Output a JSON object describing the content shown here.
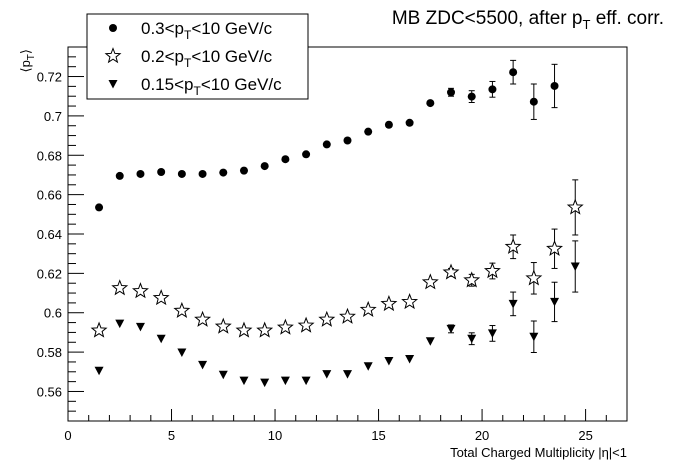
{
  "chart_data": {
    "type": "scatter",
    "title_main": "MB ZDC<5500, after p",
    "title_sub": "T",
    "title_tail": " eff. corr.",
    "xlabel": "Total Charged Multiplicity |η|<1",
    "ylabel_main": "⟨p",
    "ylabel_sub": "T",
    "ylabel_tail": "⟩",
    "xlim": [
      0,
      27
    ],
    "ylim": [
      0.545,
      0.735
    ],
    "x_ticks": [
      0,
      5,
      10,
      15,
      20,
      25
    ],
    "x_tick_labels": [
      "0",
      "5",
      "10",
      "15",
      "20",
      "25"
    ],
    "y_ticks": [
      0.56,
      0.58,
      0.6,
      0.62,
      0.64,
      0.66,
      0.68,
      0.7,
      0.72
    ],
    "y_tick_labels": [
      "0.56",
      "0.58",
      "0.6",
      "0.62",
      "0.64",
      "0.66",
      "0.68",
      "0.7",
      "0.72"
    ],
    "grid": false,
    "legend_position": "top-left",
    "series": [
      {
        "name_pre": "0.3<p",
        "name_sub": "T",
        "name_post": "<10 GeV/c",
        "marker": "circle",
        "points": [
          {
            "x": 1.5,
            "y": 0.6535,
            "err": 0.0
          },
          {
            "x": 2.5,
            "y": 0.6695,
            "err": 0.0
          },
          {
            "x": 3.5,
            "y": 0.6705,
            "err": 0.0
          },
          {
            "x": 4.5,
            "y": 0.6715,
            "err": 0.0
          },
          {
            "x": 5.5,
            "y": 0.6705,
            "err": 0.0
          },
          {
            "x": 6.5,
            "y": 0.6705,
            "err": 0.0
          },
          {
            "x": 7.5,
            "y": 0.6712,
            "err": 0.0
          },
          {
            "x": 8.5,
            "y": 0.6722,
            "err": 0.0
          },
          {
            "x": 9.5,
            "y": 0.6745,
            "err": 0.0
          },
          {
            "x": 10.5,
            "y": 0.678,
            "err": 0.0
          },
          {
            "x": 11.5,
            "y": 0.6805,
            "err": 0.0
          },
          {
            "x": 12.5,
            "y": 0.6855,
            "err": 0.0
          },
          {
            "x": 13.5,
            "y": 0.6875,
            "err": 0.0
          },
          {
            "x": 14.5,
            "y": 0.692,
            "err": 0.0
          },
          {
            "x": 15.5,
            "y": 0.6955,
            "err": 0.0
          },
          {
            "x": 16.5,
            "y": 0.6965,
            "err": 0.0
          },
          {
            "x": 17.5,
            "y": 0.7065,
            "err": 0.0
          },
          {
            "x": 18.5,
            "y": 0.712,
            "err": 0.002
          },
          {
            "x": 19.5,
            "y": 0.7098,
            "err": 0.003
          },
          {
            "x": 20.5,
            "y": 0.7135,
            "err": 0.004
          },
          {
            "x": 21.5,
            "y": 0.7222,
            "err": 0.006
          },
          {
            "x": 22.5,
            "y": 0.7072,
            "err": 0.009
          },
          {
            "x": 23.5,
            "y": 0.7152,
            "err": 0.011
          }
        ]
      },
      {
        "name_pre": "0.2<p",
        "name_sub": "T",
        "name_post": "<10 GeV/c",
        "marker": "star",
        "points": [
          {
            "x": 1.5,
            "y": 0.591,
            "err": 0.0
          },
          {
            "x": 2.5,
            "y": 0.6125,
            "err": 0.0
          },
          {
            "x": 3.5,
            "y": 0.611,
            "err": 0.0
          },
          {
            "x": 4.5,
            "y": 0.6075,
            "err": 0.0
          },
          {
            "x": 5.5,
            "y": 0.601,
            "err": 0.0
          },
          {
            "x": 6.5,
            "y": 0.5965,
            "err": 0.0
          },
          {
            "x": 7.5,
            "y": 0.593,
            "err": 0.0
          },
          {
            "x": 8.5,
            "y": 0.591,
            "err": 0.0
          },
          {
            "x": 9.5,
            "y": 0.591,
            "err": 0.0
          },
          {
            "x": 10.5,
            "y": 0.5925,
            "err": 0.0
          },
          {
            "x": 11.5,
            "y": 0.5935,
            "err": 0.0
          },
          {
            "x": 12.5,
            "y": 0.5965,
            "err": 0.0
          },
          {
            "x": 13.5,
            "y": 0.598,
            "err": 0.0
          },
          {
            "x": 14.5,
            "y": 0.6015,
            "err": 0.0
          },
          {
            "x": 15.5,
            "y": 0.6045,
            "err": 0.0
          },
          {
            "x": 16.5,
            "y": 0.6055,
            "err": 0.0
          },
          {
            "x": 17.5,
            "y": 0.6155,
            "err": 0.0
          },
          {
            "x": 18.5,
            "y": 0.6205,
            "err": 0.002
          },
          {
            "x": 19.5,
            "y": 0.6165,
            "err": 0.003
          },
          {
            "x": 20.5,
            "y": 0.6212,
            "err": 0.004
          },
          {
            "x": 21.5,
            "y": 0.6335,
            "err": 0.006
          },
          {
            "x": 22.5,
            "y": 0.6175,
            "err": 0.008
          },
          {
            "x": 23.5,
            "y": 0.6325,
            "err": 0.01
          },
          {
            "x": 24.5,
            "y": 0.6535,
            "err": 0.014
          }
        ]
      },
      {
        "name_pre": "0.15<p",
        "name_sub": "T",
        "name_post": "<10 GeV/c",
        "marker": "triangle-down",
        "points": [
          {
            "x": 1.5,
            "y": 0.5705,
            "err": 0.0
          },
          {
            "x": 2.5,
            "y": 0.5945,
            "err": 0.0
          },
          {
            "x": 3.5,
            "y": 0.5928,
            "err": 0.0
          },
          {
            "x": 4.5,
            "y": 0.5868,
            "err": 0.0
          },
          {
            "x": 5.5,
            "y": 0.5798,
            "err": 0.0
          },
          {
            "x": 6.5,
            "y": 0.5735,
            "err": 0.0
          },
          {
            "x": 7.5,
            "y": 0.5685,
            "err": 0.0
          },
          {
            "x": 8.5,
            "y": 0.5655,
            "err": 0.0
          },
          {
            "x": 9.5,
            "y": 0.5645,
            "err": 0.0
          },
          {
            "x": 10.5,
            "y": 0.5655,
            "err": 0.0
          },
          {
            "x": 11.5,
            "y": 0.5655,
            "err": 0.0
          },
          {
            "x": 12.5,
            "y": 0.5688,
            "err": 0.0
          },
          {
            "x": 13.5,
            "y": 0.5688,
            "err": 0.0
          },
          {
            "x": 14.5,
            "y": 0.5728,
            "err": 0.0
          },
          {
            "x": 15.5,
            "y": 0.5755,
            "err": 0.0
          },
          {
            "x": 16.5,
            "y": 0.5765,
            "err": 0.0
          },
          {
            "x": 17.5,
            "y": 0.5855,
            "err": 0.0
          },
          {
            "x": 18.5,
            "y": 0.5918,
            "err": 0.002
          },
          {
            "x": 19.5,
            "y": 0.5868,
            "err": 0.003
          },
          {
            "x": 20.5,
            "y": 0.5895,
            "err": 0.004
          },
          {
            "x": 21.5,
            "y": 0.6045,
            "err": 0.006
          },
          {
            "x": 22.5,
            "y": 0.5878,
            "err": 0.008
          },
          {
            "x": 23.5,
            "y": 0.6055,
            "err": 0.01
          },
          {
            "x": 24.5,
            "y": 0.6235,
            "err": 0.013
          }
        ]
      }
    ]
  }
}
